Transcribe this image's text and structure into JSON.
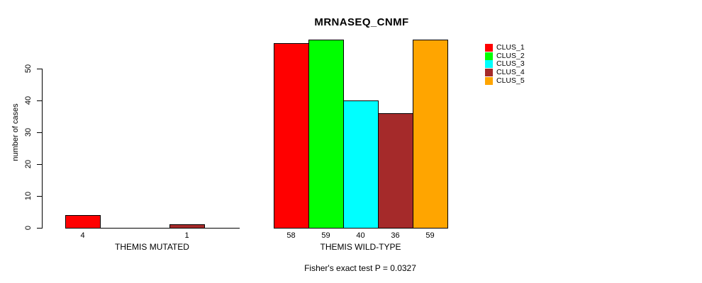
{
  "chart_data": {
    "type": "bar",
    "title": "MRNASEQ_CNMF",
    "ylabel": "number of cases",
    "yticks": [
      0,
      10,
      20,
      30,
      40,
      50
    ],
    "ylim": [
      0,
      59
    ],
    "grid": false,
    "legend_position": "top-right",
    "background": "#FFFFFF",
    "axis_color": "#000000",
    "categories": [
      "THEMIS MUTATED",
      "THEMIS WILD-TYPE"
    ],
    "series": [
      {
        "name": "CLUS_1",
        "color": "#FF0000",
        "values": [
          4,
          58
        ]
      },
      {
        "name": "CLUS_2",
        "color": "#00FF00",
        "values": [
          0,
          59
        ]
      },
      {
        "name": "CLUS_3",
        "color": "#00FFFF",
        "values": [
          0,
          40
        ]
      },
      {
        "name": "CLUS_4",
        "color": "#A52A2A",
        "values": [
          1,
          36
        ]
      },
      {
        "name": "CLUS_5",
        "color": "#FFA500",
        "values": [
          0,
          59
        ]
      }
    ],
    "bar_labels": [
      [
        "4",
        "",
        "",
        "1",
        ""
      ],
      [
        "58",
        "59",
        "40",
        "36",
        "59"
      ]
    ],
    "annotation": "Fisher's exact test P = 0.0327"
  }
}
